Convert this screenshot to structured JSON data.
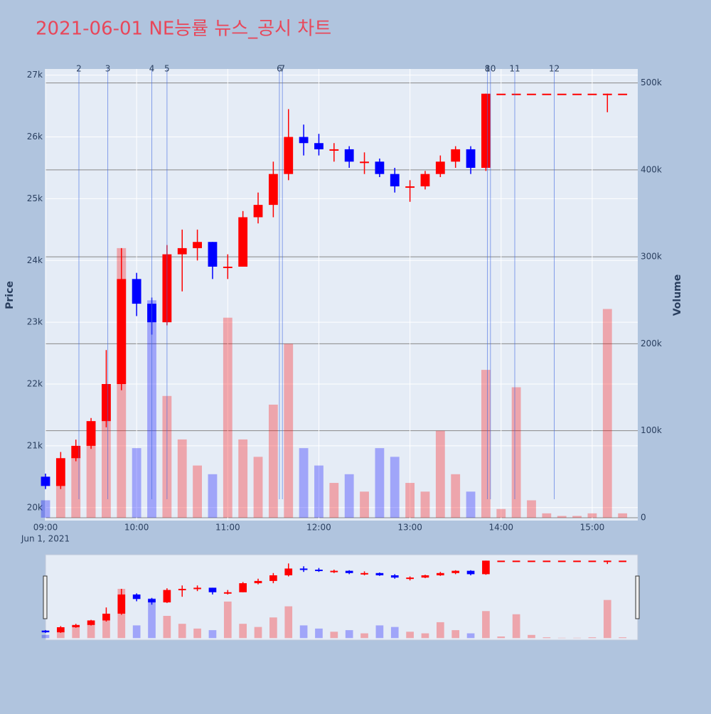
{
  "chart_data": {
    "type": "candlestick",
    "title": "2021-06-01 NE능률 뉴스_공시 차트",
    "x": [
      "09:00",
      "09:10",
      "09:20",
      "09:30",
      "09:40",
      "09:50",
      "10:00",
      "10:10",
      "10:20",
      "10:30",
      "10:40",
      "10:50",
      "11:00",
      "11:10",
      "11:20",
      "11:30",
      "11:40",
      "11:50",
      "12:00",
      "12:10",
      "12:20",
      "12:30",
      "12:40",
      "12:50",
      "13:00",
      "13:10",
      "13:20",
      "13:30",
      "13:40",
      "13:50",
      "14:00",
      "14:10",
      "14:20",
      "14:30",
      "14:40",
      "14:50",
      "15:00",
      "15:10",
      "15:20"
    ],
    "open": [
      20500,
      20350,
      20800,
      21000,
      21400,
      22000,
      23700,
      23300,
      23000,
      24100,
      24200,
      24300,
      23900,
      23900,
      24700,
      24900,
      25400,
      26000,
      25900,
      25800,
      25800,
      25600,
      25600,
      25400,
      25200,
      25200,
      25400,
      25600,
      25800,
      25500,
      26700,
      26700,
      26700,
      26700,
      26700,
      26700,
      26700,
      26700,
      26700
    ],
    "high": [
      20550,
      20900,
      21100,
      21450,
      22550,
      24200,
      23800,
      23400,
      24250,
      24500,
      24500,
      24300,
      24100,
      24800,
      25100,
      25600,
      26450,
      26200,
      26050,
      25900,
      25850,
      25750,
      25650,
      25500,
      25300,
      25450,
      25700,
      25850,
      25850,
      26700,
      26700,
      26700,
      26700,
      26700,
      26700,
      26700,
      26700,
      26700,
      26700
    ],
    "low": [
      20300,
      20300,
      20750,
      20950,
      21300,
      21900,
      23100,
      22800,
      22950,
      23500,
      24000,
      23700,
      23700,
      23900,
      24600,
      24700,
      25300,
      25700,
      25700,
      25600,
      25500,
      25400,
      25350,
      25100,
      24950,
      25150,
      25350,
      25500,
      25400,
      25450,
      26700,
      26700,
      26700,
      26700,
      26700,
      26700,
      26700,
      26400,
      26700
    ],
    "close": [
      20350,
      20800,
      21000,
      21400,
      22000,
      23700,
      23300,
      23000,
      24100,
      24200,
      24300,
      23900,
      23900,
      24700,
      24900,
      25400,
      26000,
      25900,
      25800,
      25800,
      25600,
      25600,
      25400,
      25200,
      25200,
      25400,
      25600,
      25800,
      25500,
      26700,
      26700,
      26700,
      26700,
      26700,
      26700,
      26700,
      26700,
      26700,
      26700
    ],
    "volume": [
      20000,
      40000,
      70000,
      90000,
      150000,
      310000,
      80000,
      250000,
      140000,
      90000,
      60000,
      50000,
      230000,
      90000,
      70000,
      130000,
      200000,
      80000,
      60000,
      40000,
      50000,
      30000,
      80000,
      70000,
      40000,
      30000,
      100000,
      50000,
      30000,
      170000,
      10000,
      150000,
      20000,
      5000,
      2000,
      2000,
      5000,
      240000,
      5000
    ],
    "colors": {
      "increasing": "#ff0000",
      "decreasing": "#0000ff"
    },
    "xlim": [
      "09:00",
      "15:30"
    ],
    "xticks": [
      "09:00",
      "10:00",
      "11:00",
      "12:00",
      "13:00",
      "14:00",
      "15:00"
    ],
    "x_date_label": "Jun 1, 2021",
    "ylim": [
      19790,
      27100
    ],
    "yticks": [
      {
        "value": 20000,
        "label": "20k"
      },
      {
        "value": 21000,
        "label": "21k"
      },
      {
        "value": 22000,
        "label": "22k"
      },
      {
        "value": 23000,
        "label": "23k"
      },
      {
        "value": 24000,
        "label": "24k"
      },
      {
        "value": 25000,
        "label": "25k"
      },
      {
        "value": 26000,
        "label": "26k"
      },
      {
        "value": 27000,
        "label": "27k"
      }
    ],
    "y2lim": [
      -3300,
      516000
    ],
    "y2ticks": [
      0,
      {
        "value": 100000,
        "label": "100k"
      },
      {
        "value": 200000,
        "label": "200k"
      },
      {
        "value": 300000,
        "label": "300k"
      },
      {
        "value": 400000,
        "label": "400k"
      },
      {
        "value": 500000,
        "label": "500k"
      }
    ],
    "y_title": "Price",
    "y2_title": "Volume",
    "news": {
      "labels": [
        "2",
        "3",
        "4",
        "5",
        "6",
        "7",
        "8",
        "10",
        "11",
        "12"
      ],
      "x": [
        "09:22",
        "09:41",
        "10:10",
        "10:20",
        "11:34",
        "11:36",
        "13:51",
        "13:53",
        "14:09",
        "14:35"
      ]
    }
  }
}
